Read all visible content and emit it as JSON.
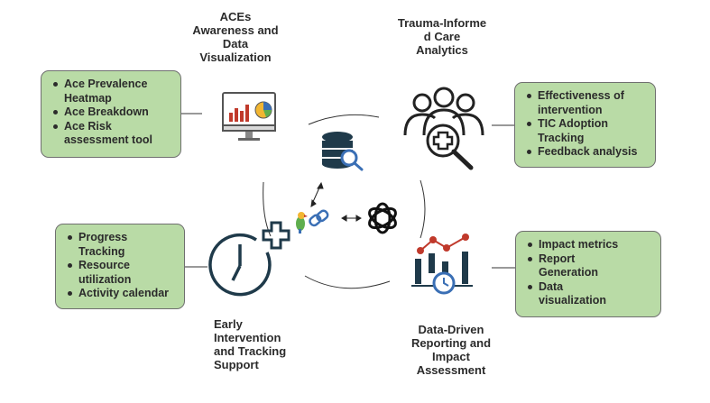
{
  "titles": {
    "aces": [
      "ACEs",
      "Awareness and",
      "Data",
      "Visualization"
    ],
    "trauma": [
      "Trauma-Informe",
      "d Care",
      "Analytics"
    ],
    "early": [
      "Early",
      "Intervention",
      "and Tracking",
      "Support"
    ],
    "reporting": [
      "Data-Driven",
      "Reporting and",
      "Impact",
      "Assessment"
    ]
  },
  "boxes": {
    "top_left": [
      [
        "Ace Prevalence",
        "Heatmap"
      ],
      [
        "Ace Breakdown"
      ],
      [
        "Ace Risk",
        "assessment tool"
      ]
    ],
    "top_right": [
      [
        "Effectiveness of",
        "intervention"
      ],
      [
        "TIC Adoption",
        "Tracking"
      ],
      [
        "Feedback analysis"
      ]
    ],
    "bottom_left": [
      [
        "Progress Tracking"
      ],
      [
        "Resource",
        "utilization"
      ],
      [
        "Activity calendar"
      ]
    ],
    "bottom_right": [
      [
        "Impact metrics"
      ],
      [
        "Report",
        "Generation"
      ],
      [
        "Data",
        "visualization"
      ]
    ]
  },
  "icons": {
    "top_left": "monitor-chart-icon",
    "top_right": "team-medical-icon",
    "bottom_left": "clock-plus-icon",
    "bottom_right": "analytics-chart-icon",
    "center_db": "database-search-icon",
    "center_parrot": "parrot-link-icon",
    "center_ai": "openai-knot-icon"
  },
  "colors": {
    "box_fill": "#b9dba6",
    "icon_navy": "#1f3a4a",
    "accent_red": "#c0392b",
    "accent_blue": "#3a6fb5"
  }
}
